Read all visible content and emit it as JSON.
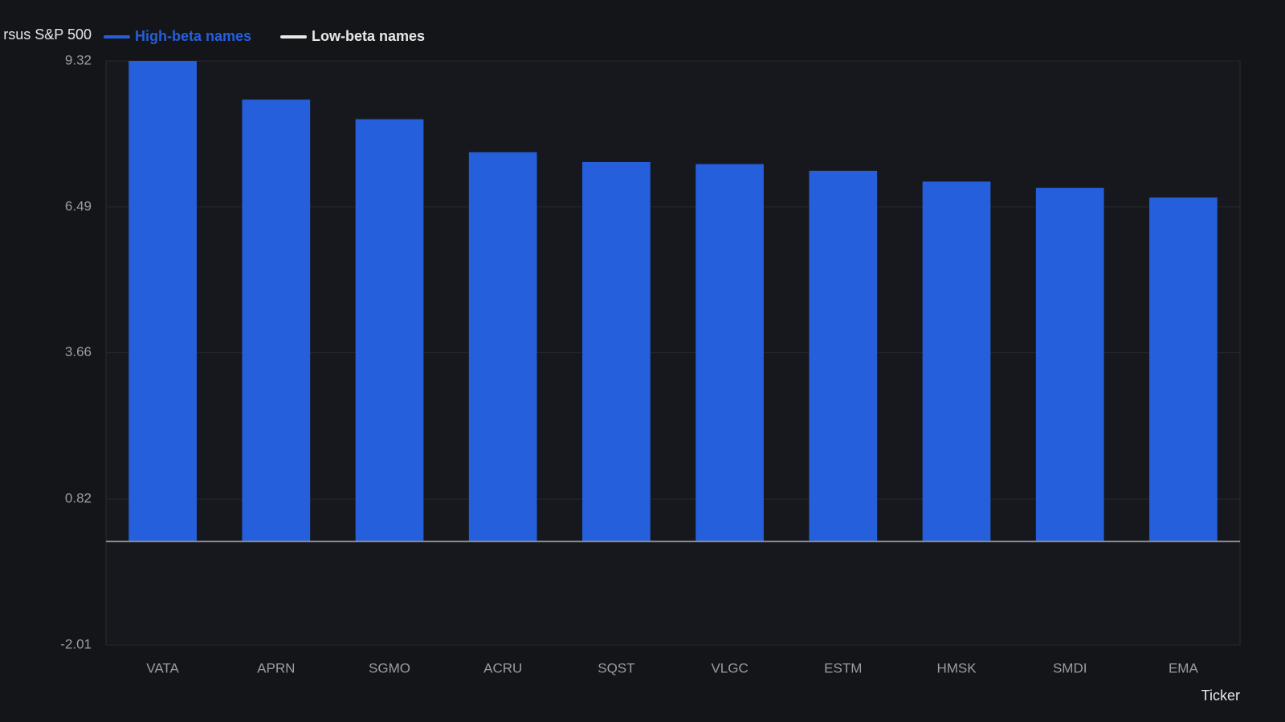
{
  "chart_data": {
    "type": "bar",
    "y_label": "rsus S&P 500",
    "x_label": "Ticker",
    "categories": [
      "VATA",
      "APRN",
      "SGMO",
      "ACRU",
      "SQST",
      "VLGC",
      "ESTM",
      "HMSK",
      "SMDI",
      "EMA"
    ],
    "series": [
      {
        "name": "High-beta names",
        "color": "#255fdc",
        "values": [
          9.32,
          8.57,
          8.19,
          7.55,
          7.36,
          7.32,
          7.19,
          6.98,
          6.86,
          6.67
        ]
      },
      {
        "name": "Low-beta names",
        "color": "#e8e8e8",
        "values": [
          null,
          null,
          null,
          null,
          null,
          null,
          null,
          null,
          null,
          null
        ]
      }
    ],
    "ylim": [
      -2.01,
      9.32
    ],
    "yticks": [
      -2.01,
      0.82,
      3.66,
      6.49,
      9.32
    ],
    "grid": true
  }
}
